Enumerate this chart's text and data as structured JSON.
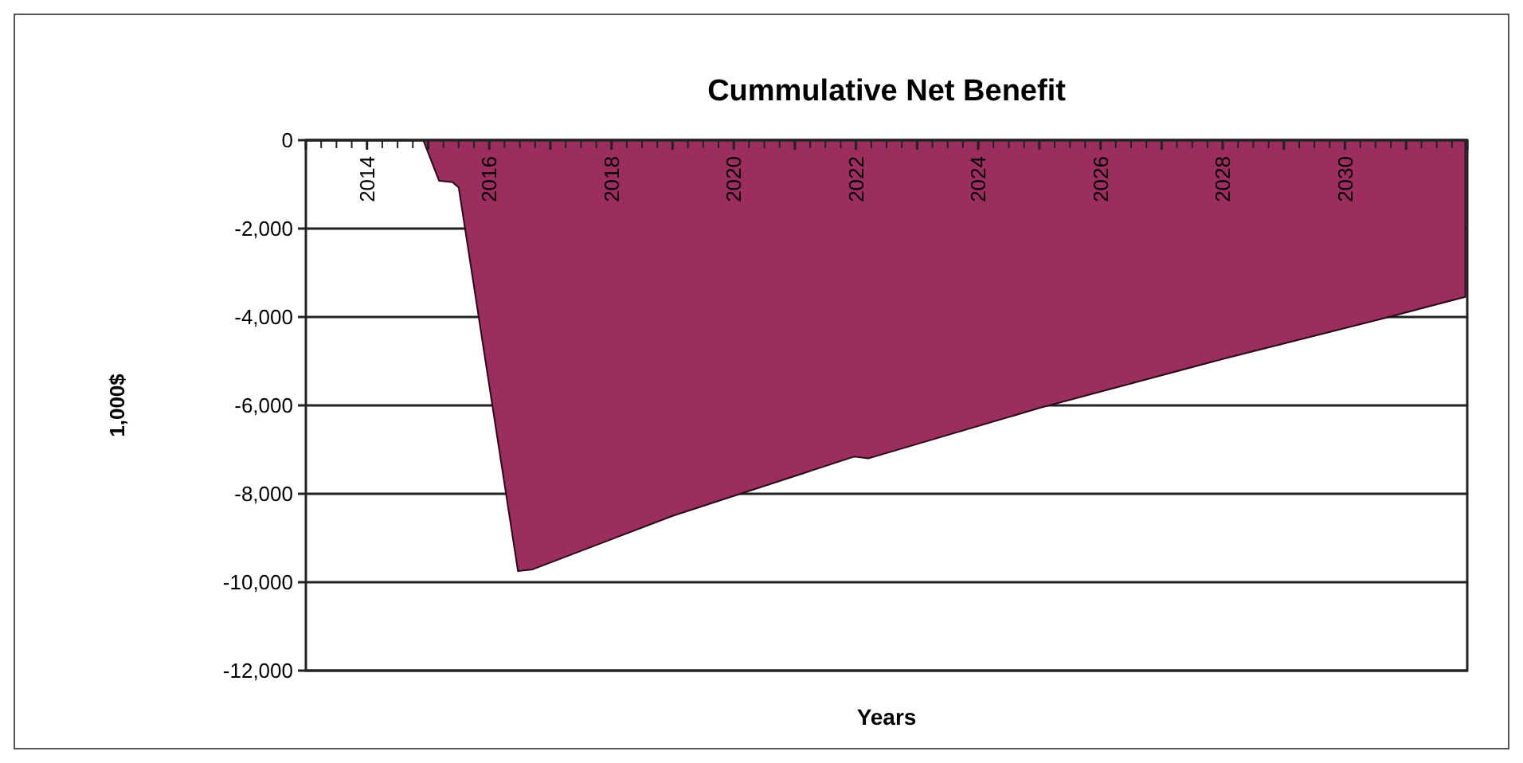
{
  "chart_data": {
    "type": "area",
    "title": "Cummulative Net Benefit",
    "xlabel": "Years",
    "ylabel": "1,000$",
    "x": [
      2014.92,
      2015.18,
      2015.4,
      2015.5,
      2016.47,
      2016.71,
      2019.0,
      2021.97,
      2022.2,
      2025.0,
      2028.0,
      2030.63,
      2031.97
    ],
    "series": [
      {
        "color": "#9b2d5f",
        "values": [
          0,
          -920,
          -950,
          -1070,
          -9750,
          -9710,
          -8500,
          -7160,
          -7200,
          -6060,
          -4950,
          -4030,
          -3545
        ]
      }
    ],
    "xlim": [
      2013,
      2032
    ],
    "xticks": [
      {
        "value": 2013,
        "label": null
      },
      2014,
      {
        "value": 2015,
        "label": null
      },
      2016,
      {
        "value": 2017,
        "label": null
      },
      2018,
      {
        "value": 2019,
        "label": null
      },
      2020,
      {
        "value": 2021,
        "label": null
      },
      2022,
      {
        "value": 2023,
        "label": null
      },
      2024,
      {
        "value": 2025,
        "label": null
      },
      2026,
      {
        "value": 2027,
        "label": null
      },
      2028,
      {
        "value": 2029,
        "label": null
      },
      2030,
      {
        "value": 2031,
        "label": null
      },
      {
        "value": 2032,
        "label": null
      }
    ],
    "ylim": [
      -12000,
      0
    ],
    "yticks": [
      {
        "value": 0,
        "label": "0"
      },
      {
        "value": -2000,
        "label": "-2,000"
      },
      {
        "value": -4000,
        "label": "-4,000"
      },
      {
        "value": -6000,
        "label": "-6,000"
      },
      {
        "value": -8000,
        "label": "-8,000"
      },
      {
        "value": -10000,
        "label": "-10,000"
      },
      {
        "value": -12000,
        "label": "-12,000"
      }
    ],
    "grid": "y"
  }
}
